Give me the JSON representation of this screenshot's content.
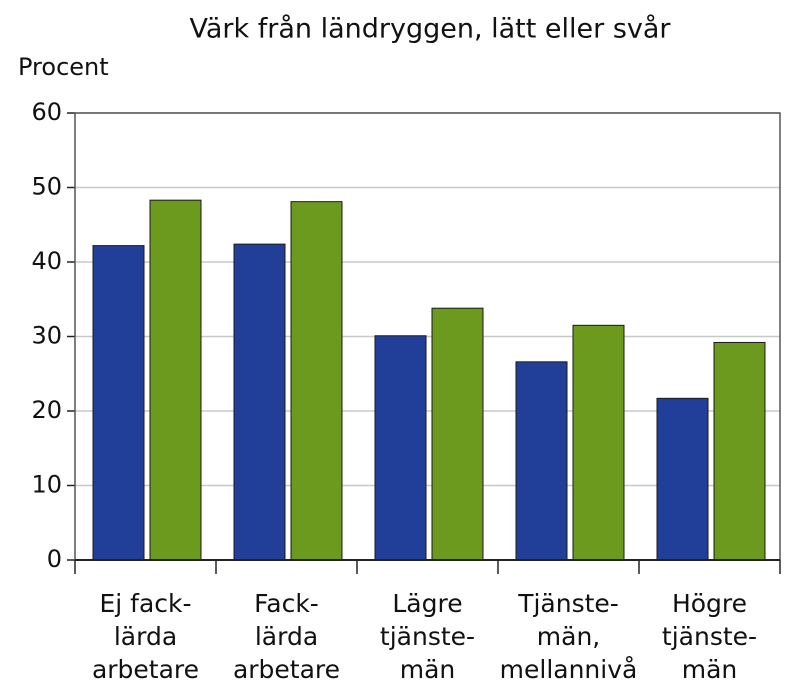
{
  "chart_data": {
    "type": "bar",
    "title": "Värk från ländryggen, lätt eller svår",
    "y_label": "Procent",
    "categories": [
      [
        "Ej fack-",
        "lärda",
        "arbetare"
      ],
      [
        "Fack-",
        "lärda",
        "arbetare"
      ],
      [
        "Lägre",
        "tjänste-",
        "män"
      ],
      [
        "Tjänste-",
        "män,",
        "mellannivå"
      ],
      [
        "Högre",
        "tjänste-",
        "män"
      ]
    ],
    "series": [
      {
        "color": "#213f98",
        "values": [
          42.2,
          42.4,
          30.1,
          26.6,
          21.7
        ]
      },
      {
        "color": "#6b9a1e",
        "values": [
          48.3,
          48.1,
          33.8,
          31.5,
          29.2
        ]
      }
    ],
    "ylim": [
      0,
      60
    ],
    "yticks": [
      0,
      10,
      20,
      30,
      40,
      50,
      60
    ],
    "grid": true
  }
}
